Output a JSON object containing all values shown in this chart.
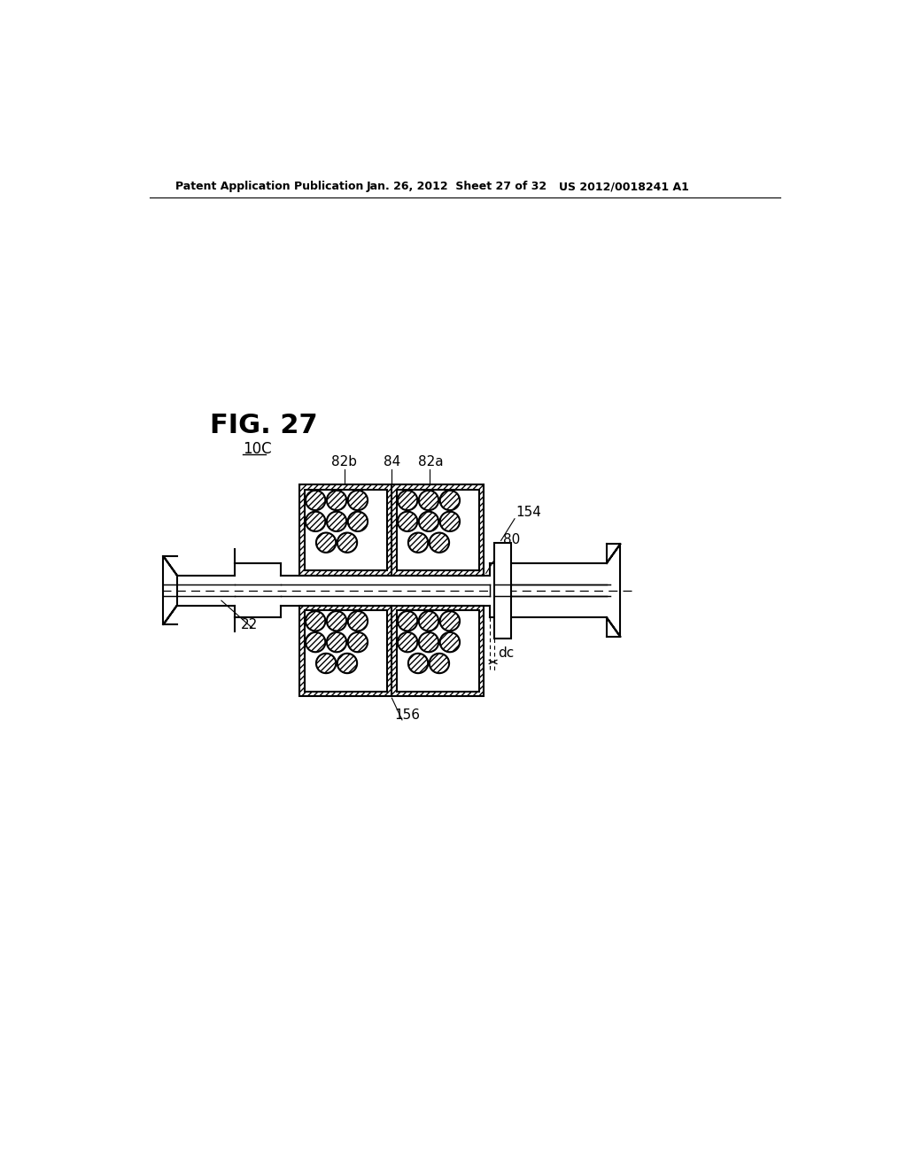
{
  "title": "FIG. 27",
  "label_10C": "10C",
  "label_22": "22",
  "label_80": "80",
  "label_82a": "82a",
  "label_82b": "82b",
  "label_84": "84",
  "label_154": "154",
  "label_156": "156",
  "label_dc": "dc",
  "header_left": "Patent Application Publication",
  "header_mid": "Jan. 26, 2012  Sheet 27 of 32",
  "header_right": "US 2012/0018241 A1",
  "bg_color": "#ffffff",
  "line_color": "#000000"
}
